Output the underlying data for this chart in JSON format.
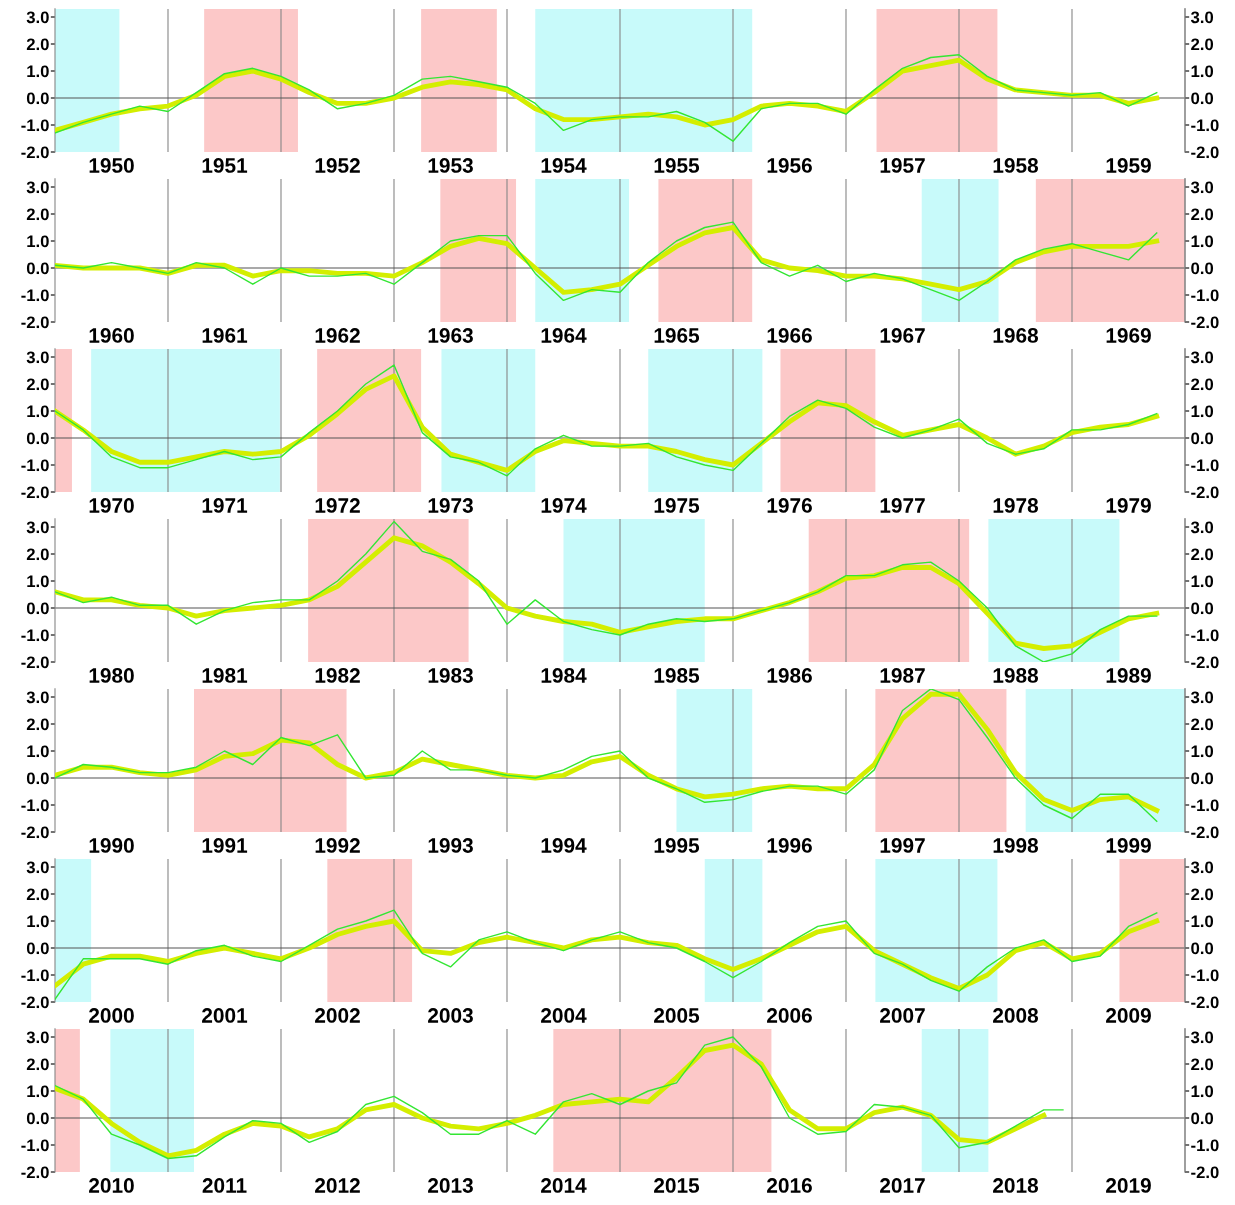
{
  "chart_data": [
    {
      "type": "line",
      "xlim": [
        1950,
        1960
      ],
      "ylim": [
        -2,
        3.3
      ],
      "y2lim": [
        -2,
        3.3
      ],
      "grid": "x",
      "yticks": [
        {
          "value": -2,
          "label": "-2.0"
        },
        {
          "value": -1,
          "label": "-1.0"
        },
        {
          "value": 0,
          "label": "0.0"
        },
        {
          "value": 1,
          "label": "1.0"
        },
        {
          "value": 2,
          "label": "2.0"
        },
        {
          "value": 3,
          "label": "3.0"
        }
      ],
      "y2ticks": [
        {
          "value": -2,
          "label": "-2.0"
        },
        {
          "value": -1,
          "label": "-1.0"
        },
        {
          "value": 0,
          "label": "0.0"
        },
        {
          "value": 1,
          "label": "1.0"
        },
        {
          "value": 2,
          "label": "2.0"
        },
        {
          "value": 3,
          "label": "3.0"
        }
      ],
      "xticks": [
        {
          "value": 1950.5,
          "label": "1950"
        },
        {
          "value": 1951,
          "label": null
        },
        {
          "value": 1951.5,
          "label": "1951"
        },
        {
          "value": 1952,
          "label": null
        },
        {
          "value": 1952.5,
          "label": "1952"
        },
        {
          "value": 1953,
          "label": null
        },
        {
          "value": 1953.5,
          "label": "1953"
        },
        {
          "value": 1954,
          "label": null
        },
        {
          "value": 1954.5,
          "label": "1954"
        },
        {
          "value": 1955,
          "label": null
        },
        {
          "value": 1955.5,
          "label": "1955"
        },
        {
          "value": 1956,
          "label": null
        },
        {
          "value": 1956.5,
          "label": "1956"
        },
        {
          "value": 1957,
          "label": null
        },
        {
          "value": 1957.5,
          "label": "1957"
        },
        {
          "value": 1958,
          "label": null
        },
        {
          "value": 1958.5,
          "label": "1958"
        },
        {
          "value": 1959,
          "label": null
        },
        {
          "value": 1959.5,
          "label": "1959"
        }
      ],
      "ref_lines": [
        {
          "axis": "y",
          "value": 0,
          "color": "#555555"
        }
      ],
      "bands": [
        {
          "axis": "x",
          "from": 1950.0,
          "to": 1950.57,
          "color": "#c8fafa"
        },
        {
          "axis": "x",
          "from": 1951.32,
          "to": 1952.15,
          "color": "#fcc8c8"
        },
        {
          "axis": "x",
          "from": 1953.24,
          "to": 1953.91,
          "color": "#fcc8c8"
        },
        {
          "axis": "x",
          "from": 1954.25,
          "to": 1956.17,
          "color": "#c8fafa"
        },
        {
          "axis": "x",
          "from": 1957.27,
          "to": 1958.34,
          "color": "#fcc8c8"
        }
      ],
      "x": [
        1950,
        1950.25,
        1950.5,
        1950.75,
        1951,
        1951.25,
        1951.5,
        1951.75,
        1952,
        1952.25,
        1952.5,
        1952.75,
        1953,
        1953.25,
        1953.5,
        1953.75,
        1954,
        1954.25,
        1954.5,
        1954.75,
        1955,
        1955.25,
        1955.5,
        1955.75,
        1956,
        1956.25,
        1956.5,
        1956.75,
        1957,
        1957.25,
        1957.5,
        1957.75,
        1958,
        1958.25,
        1958.5,
        1958.75,
        1959,
        1959.25,
        1959.5,
        1959.75
      ],
      "series": [
        {
          "color": "#d4ee00",
          "values": [
            -1.2,
            -0.9,
            -0.6,
            -0.4,
            -0.3,
            0.1,
            0.8,
            1.0,
            0.7,
            0.2,
            -0.2,
            -0.2,
            0.0,
            0.4,
            0.6,
            0.5,
            0.3,
            -0.4,
            -0.8,
            -0.8,
            -0.7,
            -0.6,
            -0.7,
            -1.0,
            -0.8,
            -0.3,
            -0.2,
            -0.3,
            -0.5,
            0.2,
            1.0,
            1.2,
            1.4,
            0.7,
            0.3,
            0.2,
            0.1,
            0.1,
            -0.2,
            0.0
          ]
        },
        {
          "color": "#33e633",
          "values": [
            -1.3,
            -0.9,
            -0.6,
            -0.3,
            -0.5,
            0.2,
            0.9,
            1.1,
            0.8,
            0.3,
            -0.4,
            -0.2,
            0.1,
            0.7,
            0.8,
            0.6,
            0.4,
            -0.2,
            -1.2,
            -0.8,
            -0.7,
            -0.7,
            -0.5,
            -0.9,
            -1.6,
            -0.4,
            -0.2,
            -0.2,
            -0.6,
            0.3,
            1.1,
            1.5,
            1.6,
            0.8,
            0.3,
            0.2,
            0.1,
            0.2,
            -0.3,
            0.2
          ]
        }
      ]
    },
    {
      "type": "line",
      "xlim": [
        1960,
        1970
      ],
      "ylim": [
        -2,
        3.3
      ],
      "y2lim": [
        -2,
        3.3
      ],
      "grid": "x",
      "yticks": [
        {
          "value": -2,
          "label": "-2.0"
        },
        {
          "value": -1,
          "label": "-1.0"
        },
        {
          "value": 0,
          "label": "0.0"
        },
        {
          "value": 1,
          "label": "1.0"
        },
        {
          "value": 2,
          "label": "2.0"
        },
        {
          "value": 3,
          "label": "3.0"
        }
      ],
      "y2ticks": [
        {
          "value": -2,
          "label": "-2.0"
        },
        {
          "value": -1,
          "label": "-1.0"
        },
        {
          "value": 0,
          "label": "0.0"
        },
        {
          "value": 1,
          "label": "1.0"
        },
        {
          "value": 2,
          "label": "2.0"
        },
        {
          "value": 3,
          "label": "3.0"
        }
      ],
      "xticks": [
        {
          "value": 1960.5,
          "label": "1960"
        },
        {
          "value": 1961,
          "label": null
        },
        {
          "value": 1961.5,
          "label": "1961"
        },
        {
          "value": 1962,
          "label": null
        },
        {
          "value": 1962.5,
          "label": "1962"
        },
        {
          "value": 1963,
          "label": null
        },
        {
          "value": 1963.5,
          "label": "1963"
        },
        {
          "value": 1964,
          "label": null
        },
        {
          "value": 1964.5,
          "label": "1964"
        },
        {
          "value": 1965,
          "label": null
        },
        {
          "value": 1965.5,
          "label": "1965"
        },
        {
          "value": 1966,
          "label": null
        },
        {
          "value": 1966.5,
          "label": "1966"
        },
        {
          "value": 1967,
          "label": null
        },
        {
          "value": 1967.5,
          "label": "1967"
        },
        {
          "value": 1968,
          "label": null
        },
        {
          "value": 1968.5,
          "label": "1968"
        },
        {
          "value": 1969,
          "label": null
        },
        {
          "value": 1969.5,
          "label": "1969"
        }
      ],
      "ref_lines": [
        {
          "axis": "y",
          "value": 0,
          "color": "#555555"
        }
      ],
      "bands": [
        {
          "axis": "x",
          "from": 1963.41,
          "to": 1964.08,
          "color": "#fcc8c8"
        },
        {
          "axis": "x",
          "from": 1964.25,
          "to": 1965.08,
          "color": "#c8fafa"
        },
        {
          "axis": "x",
          "from": 1965.34,
          "to": 1966.17,
          "color": "#fcc8c8"
        },
        {
          "axis": "x",
          "from": 1967.67,
          "to": 1968.35,
          "color": "#c8fafa"
        },
        {
          "axis": "x",
          "from": 1968.68,
          "to": 1970.0,
          "color": "#fcc8c8"
        }
      ],
      "x": [
        1960,
        1960.25,
        1960.5,
        1960.75,
        1961,
        1961.25,
        1961.5,
        1961.75,
        1962,
        1962.25,
        1962.5,
        1962.75,
        1963,
        1963.25,
        1963.5,
        1963.75,
        1964,
        1964.25,
        1964.5,
        1964.75,
        1965,
        1965.25,
        1965.5,
        1965.75,
        1966,
        1966.25,
        1966.5,
        1966.75,
        1967,
        1967.25,
        1967.5,
        1967.75,
        1968,
        1968.25,
        1968.5,
        1968.75,
        1969,
        1969.25,
        1969.5,
        1969.75
      ],
      "series": [
        {
          "color": "#d4ee00",
          "values": [
            0.1,
            0.0,
            0.0,
            0.0,
            -0.2,
            0.1,
            0.1,
            -0.3,
            -0.1,
            -0.1,
            -0.2,
            -0.2,
            -0.3,
            0.2,
            0.8,
            1.1,
            0.9,
            0.0,
            -0.9,
            -0.8,
            -0.6,
            0.1,
            0.8,
            1.3,
            1.5,
            0.3,
            0.0,
            -0.1,
            -0.3,
            -0.3,
            -0.4,
            -0.6,
            -0.8,
            -0.5,
            0.2,
            0.6,
            0.8,
            0.8,
            0.8,
            1.0
          ]
        },
        {
          "color": "#33e633",
          "values": [
            0.1,
            0.0,
            0.2,
            0.0,
            -0.2,
            0.2,
            0.0,
            -0.6,
            0.0,
            -0.3,
            -0.3,
            -0.2,
            -0.6,
            0.2,
            1.0,
            1.2,
            1.2,
            -0.2,
            -1.2,
            -0.8,
            -0.9,
            0.2,
            1.0,
            1.5,
            1.7,
            0.2,
            -0.3,
            0.1,
            -0.5,
            -0.2,
            -0.4,
            -0.8,
            -1.2,
            -0.5,
            0.3,
            0.7,
            0.9,
            0.6,
            0.3,
            1.3
          ]
        }
      ]
    },
    {
      "type": "line",
      "xlim": [
        1970,
        1980
      ],
      "ylim": [
        -2,
        3.3
      ],
      "y2lim": [
        -2,
        3.3
      ],
      "grid": "x",
      "yticks": [
        {
          "value": -2,
          "label": "-2.0"
        },
        {
          "value": -1,
          "label": "-1.0"
        },
        {
          "value": 0,
          "label": "0.0"
        },
        {
          "value": 1,
          "label": "1.0"
        },
        {
          "value": 2,
          "label": "2.0"
        },
        {
          "value": 3,
          "label": "3.0"
        }
      ],
      "y2ticks": [
        {
          "value": -2,
          "label": "-2.0"
        },
        {
          "value": -1,
          "label": "-1.0"
        },
        {
          "value": 0,
          "label": "0.0"
        },
        {
          "value": 1,
          "label": "1.0"
        },
        {
          "value": 2,
          "label": "2.0"
        },
        {
          "value": 3,
          "label": "3.0"
        }
      ],
      "xticks": [
        {
          "value": 1970.5,
          "label": "1970"
        },
        {
          "value": 1971,
          "label": null
        },
        {
          "value": 1971.5,
          "label": "1971"
        },
        {
          "value": 1972,
          "label": null
        },
        {
          "value": 1972.5,
          "label": "1972"
        },
        {
          "value": 1973,
          "label": null
        },
        {
          "value": 1973.5,
          "label": "1973"
        },
        {
          "value": 1974,
          "label": null
        },
        {
          "value": 1974.5,
          "label": "1974"
        },
        {
          "value": 1975,
          "label": null
        },
        {
          "value": 1975.5,
          "label": "1975"
        },
        {
          "value": 1976,
          "label": null
        },
        {
          "value": 1976.5,
          "label": "1976"
        },
        {
          "value": 1977,
          "label": null
        },
        {
          "value": 1977.5,
          "label": "1977"
        },
        {
          "value": 1978,
          "label": null
        },
        {
          "value": 1978.5,
          "label": "1978"
        },
        {
          "value": 1979,
          "label": null
        },
        {
          "value": 1979.5,
          "label": "1979"
        }
      ],
      "ref_lines": [
        {
          "axis": "y",
          "value": 0,
          "color": "#555555"
        }
      ],
      "bands": [
        {
          "axis": "x",
          "from": 1970.0,
          "to": 1970.15,
          "color": "#fcc8c8"
        },
        {
          "axis": "x",
          "from": 1970.32,
          "to": 1971.99,
          "color": "#c8fafa"
        },
        {
          "axis": "x",
          "from": 1972.32,
          "to": 1973.24,
          "color": "#fcc8c8"
        },
        {
          "axis": "x",
          "from": 1973.42,
          "to": 1974.25,
          "color": "#c8fafa"
        },
        {
          "axis": "x",
          "from": 1975.25,
          "to": 1976.26,
          "color": "#c8fafa"
        },
        {
          "axis": "x",
          "from": 1976.42,
          "to": 1977.26,
          "color": "#fcc8c8"
        }
      ],
      "x": [
        1970,
        1970.25,
        1970.5,
        1970.75,
        1971,
        1971.25,
        1971.5,
        1971.75,
        1972,
        1972.25,
        1972.5,
        1972.75,
        1973,
        1973.25,
        1973.5,
        1973.75,
        1974,
        1974.25,
        1974.5,
        1974.75,
        1975,
        1975.25,
        1975.5,
        1975.75,
        1976,
        1976.25,
        1976.5,
        1976.75,
        1977,
        1977.25,
        1977.5,
        1977.75,
        1978,
        1978.25,
        1978.5,
        1978.75,
        1979,
        1979.25,
        1979.5,
        1979.75
      ],
      "series": [
        {
          "color": "#d4ee00",
          "values": [
            1.0,
            0.3,
            -0.5,
            -0.9,
            -0.9,
            -0.7,
            -0.5,
            -0.6,
            -0.5,
            0.1,
            0.9,
            1.8,
            2.3,
            0.4,
            -0.6,
            -0.9,
            -1.2,
            -0.5,
            -0.1,
            -0.2,
            -0.3,
            -0.3,
            -0.5,
            -0.8,
            -1.0,
            -0.2,
            0.6,
            1.3,
            1.2,
            0.6,
            0.1,
            0.3,
            0.5,
            0.0,
            -0.6,
            -0.3,
            0.2,
            0.4,
            0.5,
            0.8
          ]
        },
        {
          "color": "#33e633",
          "values": [
            1.0,
            0.3,
            -0.7,
            -1.1,
            -1.1,
            -0.8,
            -0.5,
            -0.8,
            -0.7,
            0.2,
            1.0,
            2.0,
            2.7,
            0.2,
            -0.7,
            -0.9,
            -1.4,
            -0.4,
            0.1,
            -0.3,
            -0.3,
            -0.2,
            -0.7,
            -1.0,
            -1.2,
            -0.2,
            0.8,
            1.4,
            1.1,
            0.4,
            0.0,
            0.3,
            0.7,
            -0.2,
            -0.6,
            -0.4,
            0.3,
            0.3,
            0.5,
            0.9
          ]
        }
      ]
    },
    {
      "type": "line",
      "xlim": [
        1980,
        1990
      ],
      "ylim": [
        -2,
        3.3
      ],
      "y2lim": [
        -2,
        3.3
      ],
      "grid": "x",
      "yticks": [
        {
          "value": -2,
          "label": "-2.0"
        },
        {
          "value": -1,
          "label": "-1.0"
        },
        {
          "value": 0,
          "label": "0.0"
        },
        {
          "value": 1,
          "label": "1.0"
        },
        {
          "value": 2,
          "label": "2.0"
        },
        {
          "value": 3,
          "label": "3.0"
        }
      ],
      "y2ticks": [
        {
          "value": -2,
          "label": "-2.0"
        },
        {
          "value": -1,
          "label": "-1.0"
        },
        {
          "value": 0,
          "label": "0.0"
        },
        {
          "value": 1,
          "label": "1.0"
        },
        {
          "value": 2,
          "label": "2.0"
        },
        {
          "value": 3,
          "label": "3.0"
        }
      ],
      "xticks": [
        {
          "value": 1980.5,
          "label": "1980"
        },
        {
          "value": 1981,
          "label": null
        },
        {
          "value": 1981.5,
          "label": "1981"
        },
        {
          "value": 1982,
          "label": null
        },
        {
          "value": 1982.5,
          "label": "1982"
        },
        {
          "value": 1983,
          "label": null
        },
        {
          "value": 1983.5,
          "label": "1983"
        },
        {
          "value": 1984,
          "label": null
        },
        {
          "value": 1984.5,
          "label": "1984"
        },
        {
          "value": 1985,
          "label": null
        },
        {
          "value": 1985.5,
          "label": "1985"
        },
        {
          "value": 1986,
          "label": null
        },
        {
          "value": 1986.5,
          "label": "1986"
        },
        {
          "value": 1987,
          "label": null
        },
        {
          "value": 1987.5,
          "label": "1987"
        },
        {
          "value": 1988,
          "label": null
        },
        {
          "value": 1988.5,
          "label": "1988"
        },
        {
          "value": 1989,
          "label": null
        },
        {
          "value": 1989.5,
          "label": "1989"
        }
      ],
      "ref_lines": [
        {
          "axis": "y",
          "value": 0,
          "color": "#555555"
        }
      ],
      "bands": [
        {
          "axis": "x",
          "from": 1982.24,
          "to": 1983.66,
          "color": "#fcc8c8"
        },
        {
          "axis": "x",
          "from": 1984.5,
          "to": 1985.75,
          "color": "#c8fafa"
        },
        {
          "axis": "x",
          "from": 1986.67,
          "to": 1988.09,
          "color": "#fcc8c8"
        },
        {
          "axis": "x",
          "from": 1988.26,
          "to": 1989.42,
          "color": "#c8fafa"
        }
      ],
      "x": [
        1980,
        1980.25,
        1980.5,
        1980.75,
        1981,
        1981.25,
        1981.5,
        1981.75,
        1982,
        1982.25,
        1982.5,
        1982.75,
        1983,
        1983.25,
        1983.5,
        1983.75,
        1984,
        1984.25,
        1984.5,
        1984.75,
        1985,
        1985.25,
        1985.5,
        1985.75,
        1986,
        1986.25,
        1986.5,
        1986.75,
        1987,
        1987.25,
        1987.5,
        1987.75,
        1988,
        1988.25,
        1988.5,
        1988.75,
        1989,
        1989.25,
        1989.5,
        1989.75
      ],
      "series": [
        {
          "color": "#d4ee00",
          "values": [
            0.6,
            0.3,
            0.3,
            0.1,
            0.0,
            -0.3,
            -0.1,
            0.0,
            0.1,
            0.3,
            0.8,
            1.7,
            2.6,
            2.3,
            1.7,
            0.9,
            0.0,
            -0.3,
            -0.5,
            -0.6,
            -0.9,
            -0.7,
            -0.5,
            -0.4,
            -0.4,
            -0.1,
            0.2,
            0.6,
            1.1,
            1.2,
            1.5,
            1.5,
            0.9,
            -0.2,
            -1.3,
            -1.5,
            -1.4,
            -0.9,
            -0.4,
            -0.2
          ]
        },
        {
          "color": "#33e633",
          "values": [
            0.6,
            0.2,
            0.4,
            0.1,
            0.1,
            -0.6,
            -0.1,
            0.2,
            0.3,
            0.3,
            1.0,
            2.0,
            3.2,
            2.1,
            1.8,
            1.0,
            -0.6,
            0.3,
            -0.5,
            -0.8,
            -1.0,
            -0.6,
            -0.4,
            -0.5,
            -0.4,
            -0.1,
            0.2,
            0.6,
            1.2,
            1.2,
            1.6,
            1.7,
            1.0,
            0.0,
            -1.4,
            -2.0,
            -1.7,
            -0.8,
            -0.3,
            -0.3
          ]
        }
      ]
    },
    {
      "type": "line",
      "xlim": [
        1990,
        2000
      ],
      "ylim": [
        -2,
        3.3
      ],
      "y2lim": [
        -2,
        3.3
      ],
      "grid": "x",
      "yticks": [
        {
          "value": -2,
          "label": "-2.0"
        },
        {
          "value": -1,
          "label": "-1.0"
        },
        {
          "value": 0,
          "label": "0.0"
        },
        {
          "value": 1,
          "label": "1.0"
        },
        {
          "value": 2,
          "label": "2.0"
        },
        {
          "value": 3,
          "label": "3.0"
        }
      ],
      "y2ticks": [
        {
          "value": -2,
          "label": "-2.0"
        },
        {
          "value": -1,
          "label": "-1.0"
        },
        {
          "value": 0,
          "label": "0.0"
        },
        {
          "value": 1,
          "label": "1.0"
        },
        {
          "value": 2,
          "label": "2.0"
        },
        {
          "value": 3,
          "label": "3.0"
        }
      ],
      "xticks": [
        {
          "value": 1990.5,
          "label": "1990"
        },
        {
          "value": 1991,
          "label": null
        },
        {
          "value": 1991.5,
          "label": "1991"
        },
        {
          "value": 1992,
          "label": null
        },
        {
          "value": 1992.5,
          "label": "1992"
        },
        {
          "value": 1993,
          "label": null
        },
        {
          "value": 1993.5,
          "label": "1993"
        },
        {
          "value": 1994,
          "label": null
        },
        {
          "value": 1994.5,
          "label": "1994"
        },
        {
          "value": 1995,
          "label": null
        },
        {
          "value": 1995.5,
          "label": "1995"
        },
        {
          "value": 1996,
          "label": null
        },
        {
          "value": 1996.5,
          "label": "1996"
        },
        {
          "value": 1997,
          "label": null
        },
        {
          "value": 1997.5,
          "label": "1997"
        },
        {
          "value": 1998,
          "label": null
        },
        {
          "value": 1998.5,
          "label": "1998"
        },
        {
          "value": 1999,
          "label": null
        },
        {
          "value": 1999.5,
          "label": "1999"
        }
      ],
      "ref_lines": [
        {
          "axis": "y",
          "value": 0,
          "color": "#555555"
        }
      ],
      "bands": [
        {
          "axis": "x",
          "from": 1991.23,
          "to": 1992.58,
          "color": "#fcc8c8"
        },
        {
          "axis": "x",
          "from": 1995.5,
          "to": 1996.17,
          "color": "#c8fafa"
        },
        {
          "axis": "x",
          "from": 1997.26,
          "to": 1998.42,
          "color": "#fcc8c8"
        },
        {
          "axis": "x",
          "from": 1998.59,
          "to": 2000.0,
          "color": "#c8fafa"
        }
      ],
      "x": [
        1990,
        1990.25,
        1990.5,
        1990.75,
        1991,
        1991.25,
        1991.5,
        1991.75,
        1992,
        1992.25,
        1992.5,
        1992.75,
        1993,
        1993.25,
        1993.5,
        1993.75,
        1994,
        1994.25,
        1994.5,
        1994.75,
        1995,
        1995.25,
        1995.5,
        1995.75,
        1996,
        1996.25,
        1996.5,
        1996.75,
        1997,
        1997.25,
        1997.5,
        1997.75,
        1998,
        1998.25,
        1998.5,
        1998.75,
        1999,
        1999.25,
        1999.5,
        1999.75
      ],
      "series": [
        {
          "color": "#d4ee00",
          "values": [
            0.1,
            0.4,
            0.4,
            0.2,
            0.1,
            0.3,
            0.8,
            0.9,
            1.4,
            1.3,
            0.5,
            0.0,
            0.2,
            0.7,
            0.5,
            0.3,
            0.1,
            0.0,
            0.1,
            0.6,
            0.8,
            0.1,
            -0.4,
            -0.7,
            -0.6,
            -0.4,
            -0.3,
            -0.4,
            -0.4,
            0.5,
            2.2,
            3.1,
            3.1,
            1.8,
            0.2,
            -0.8,
            -1.2,
            -0.8,
            -0.7,
            -1.2
          ]
        },
        {
          "color": "#33e633",
          "values": [
            0.0,
            0.5,
            0.4,
            0.2,
            0.2,
            0.4,
            1.0,
            0.5,
            1.5,
            1.2,
            1.6,
            0.0,
            0.1,
            1.0,
            0.3,
            0.3,
            0.1,
            0.0,
            0.3,
            0.8,
            1.0,
            0.0,
            -0.4,
            -0.9,
            -0.8,
            -0.5,
            -0.3,
            -0.3,
            -0.6,
            0.3,
            2.5,
            3.3,
            2.9,
            1.5,
            0.0,
            -1.0,
            -1.5,
            -0.6,
            -0.6,
            -1.6
          ]
        }
      ]
    },
    {
      "type": "line",
      "xlim": [
        2000,
        2010
      ],
      "ylim": [
        -2,
        3.3
      ],
      "y2lim": [
        -2,
        3.3
      ],
      "grid": "x",
      "yticks": [
        {
          "value": -2,
          "label": "-2.0"
        },
        {
          "value": -1,
          "label": "-1.0"
        },
        {
          "value": 0,
          "label": "0.0"
        },
        {
          "value": 1,
          "label": "1.0"
        },
        {
          "value": 2,
          "label": "2.0"
        },
        {
          "value": 3,
          "label": "3.0"
        }
      ],
      "y2ticks": [
        {
          "value": -2,
          "label": "-2.0"
        },
        {
          "value": -1,
          "label": "-1.0"
        },
        {
          "value": 0,
          "label": "0.0"
        },
        {
          "value": 1,
          "label": "1.0"
        },
        {
          "value": 2,
          "label": "2.0"
        },
        {
          "value": 3,
          "label": "3.0"
        }
      ],
      "xticks": [
        {
          "value": 2000.5,
          "label": "2000"
        },
        {
          "value": 2001,
          "label": null
        },
        {
          "value": 2001.5,
          "label": "2001"
        },
        {
          "value": 2002,
          "label": null
        },
        {
          "value": 2002.5,
          "label": "2002"
        },
        {
          "value": 2003,
          "label": null
        },
        {
          "value": 2003.5,
          "label": "2003"
        },
        {
          "value": 2004,
          "label": null
        },
        {
          "value": 2004.5,
          "label": "2004"
        },
        {
          "value": 2005,
          "label": null
        },
        {
          "value": 2005.5,
          "label": "2005"
        },
        {
          "value": 2006,
          "label": null
        },
        {
          "value": 2006.5,
          "label": "2006"
        },
        {
          "value": 2007,
          "label": null
        },
        {
          "value": 2007.5,
          "label": "2007"
        },
        {
          "value": 2008,
          "label": null
        },
        {
          "value": 2008.5,
          "label": "2008"
        },
        {
          "value": 2009,
          "label": null
        },
        {
          "value": 2009.5,
          "label": "2009"
        }
      ],
      "ref_lines": [
        {
          "axis": "y",
          "value": 0,
          "color": "#555555"
        }
      ],
      "bands": [
        {
          "axis": "x",
          "from": 2000.0,
          "to": 2000.32,
          "color": "#c8fafa"
        },
        {
          "axis": "x",
          "from": 2002.41,
          "to": 2003.16,
          "color": "#fcc8c8"
        },
        {
          "axis": "x",
          "from": 2005.75,
          "to": 2006.26,
          "color": "#c8fafa"
        },
        {
          "axis": "x",
          "from": 2007.26,
          "to": 2008.34,
          "color": "#c8fafa"
        },
        {
          "axis": "x",
          "from": 2009.42,
          "to": 2010.0,
          "color": "#fcc8c8"
        }
      ],
      "x": [
        2000,
        2000.25,
        2000.5,
        2000.75,
        2001,
        2001.25,
        2001.5,
        2001.75,
        2002,
        2002.25,
        2002.5,
        2002.75,
        2003,
        2003.25,
        2003.5,
        2003.75,
        2004,
        2004.25,
        2004.5,
        2004.75,
        2005,
        2005.25,
        2005.5,
        2005.75,
        2006,
        2006.25,
        2006.5,
        2006.75,
        2007,
        2007.25,
        2007.5,
        2007.75,
        2008,
        2008.25,
        2008.5,
        2008.75,
        2009,
        2009.25,
        2009.5,
        2009.75
      ],
      "series": [
        {
          "color": "#d4ee00",
          "values": [
            -1.4,
            -0.6,
            -0.3,
            -0.3,
            -0.5,
            -0.2,
            0.0,
            -0.2,
            -0.4,
            0.0,
            0.5,
            0.8,
            1.0,
            -0.1,
            -0.2,
            0.2,
            0.4,
            0.2,
            0.0,
            0.3,
            0.4,
            0.2,
            0.1,
            -0.4,
            -0.8,
            -0.4,
            0.1,
            0.6,
            0.8,
            -0.1,
            -0.6,
            -1.1,
            -1.5,
            -1.0,
            -0.1,
            0.2,
            -0.4,
            -0.2,
            0.6,
            1.0
          ]
        },
        {
          "color": "#33e633",
          "values": [
            -1.9,
            -0.4,
            -0.4,
            -0.4,
            -0.6,
            -0.1,
            0.1,
            -0.3,
            -0.5,
            0.1,
            0.7,
            1.0,
            1.4,
            -0.2,
            -0.7,
            0.3,
            0.6,
            0.2,
            -0.1,
            0.3,
            0.6,
            0.2,
            0.0,
            -0.5,
            -1.1,
            -0.5,
            0.2,
            0.8,
            1.0,
            -0.2,
            -0.6,
            -1.2,
            -1.6,
            -0.7,
            0.0,
            0.3,
            -0.5,
            -0.3,
            0.8,
            1.3
          ]
        }
      ]
    },
    {
      "type": "line",
      "xlim": [
        2010,
        2020
      ],
      "ylim": [
        -2,
        3.3
      ],
      "y2lim": [
        -2,
        3.3
      ],
      "grid": "x",
      "yticks": [
        {
          "value": -2,
          "label": "-2.0"
        },
        {
          "value": -1,
          "label": "-1.0"
        },
        {
          "value": 0,
          "label": "0.0"
        },
        {
          "value": 1,
          "label": "1.0"
        },
        {
          "value": 2,
          "label": "2.0"
        },
        {
          "value": 3,
          "label": "3.0"
        }
      ],
      "y2ticks": [
        {
          "value": -2,
          "label": "-2.0"
        },
        {
          "value": -1,
          "label": "-1.0"
        },
        {
          "value": 0,
          "label": "0.0"
        },
        {
          "value": 1,
          "label": "1.0"
        },
        {
          "value": 2,
          "label": "2.0"
        },
        {
          "value": 3,
          "label": "3.0"
        }
      ],
      "xticks": [
        {
          "value": 2010.5,
          "label": "2010"
        },
        {
          "value": 2011,
          "label": null
        },
        {
          "value": 2011.5,
          "label": "2011"
        },
        {
          "value": 2012,
          "label": null
        },
        {
          "value": 2012.5,
          "label": "2012"
        },
        {
          "value": 2013,
          "label": null
        },
        {
          "value": 2013.5,
          "label": "2013"
        },
        {
          "value": 2014,
          "label": null
        },
        {
          "value": 2014.5,
          "label": "2014"
        },
        {
          "value": 2015,
          "label": null
        },
        {
          "value": 2015.5,
          "label": "2015"
        },
        {
          "value": 2016,
          "label": null
        },
        {
          "value": 2016.5,
          "label": "2016"
        },
        {
          "value": 2017,
          "label": null
        },
        {
          "value": 2017.5,
          "label": "2017"
        },
        {
          "value": 2018,
          "label": null
        },
        {
          "value": 2018.5,
          "label": "2018"
        },
        {
          "value": 2019,
          "label": null
        },
        {
          "value": 2019.5,
          "label": "2019"
        }
      ],
      "ref_lines": [
        {
          "axis": "y",
          "value": 0,
          "color": "#555555"
        }
      ],
      "bands": [
        {
          "axis": "x",
          "from": 2010.0,
          "to": 2010.22,
          "color": "#fcc8c8"
        },
        {
          "axis": "x",
          "from": 2010.49,
          "to": 2011.23,
          "color": "#c8fafa"
        },
        {
          "axis": "x",
          "from": 2014.41,
          "to": 2016.34,
          "color": "#fcc8c8"
        },
        {
          "axis": "x",
          "from": 2017.67,
          "to": 2018.26,
          "color": "#c8fafa"
        }
      ],
      "x": [
        2010,
        2010.25,
        2010.5,
        2010.75,
        2011,
        2011.25,
        2011.5,
        2011.75,
        2012,
        2012.25,
        2012.5,
        2012.75,
        2013,
        2013.25,
        2013.5,
        2013.75,
        2014,
        2014.25,
        2014.5,
        2014.75,
        2015,
        2015.25,
        2015.5,
        2015.75,
        2016,
        2016.25,
        2016.5,
        2016.75,
        2017,
        2017.25,
        2017.5,
        2017.75,
        2018,
        2018.25,
        2018.5,
        2018.75,
        2018.92
      ],
      "series": [
        {
          "color": "#d4ee00",
          "values": [
            1.1,
            0.7,
            -0.2,
            -0.9,
            -1.4,
            -1.2,
            -0.6,
            -0.2,
            -0.3,
            -0.7,
            -0.4,
            0.3,
            0.5,
            0.0,
            -0.3,
            -0.4,
            -0.2,
            0.1,
            0.5,
            0.6,
            0.7,
            0.6,
            1.5,
            2.5,
            2.7,
            2.0,
            0.3,
            -0.4,
            -0.4,
            0.2,
            0.4,
            0.1,
            -0.8,
            -0.9,
            -0.4,
            0.1,
            null
          ]
        },
        {
          "color": "#33e633",
          "values": [
            1.2,
            0.7,
            -0.6,
            -1.0,
            -1.5,
            -1.4,
            -0.7,
            -0.1,
            -0.2,
            -0.9,
            -0.5,
            0.5,
            0.8,
            0.2,
            -0.6,
            -0.6,
            -0.1,
            -0.6,
            0.6,
            0.9,
            0.5,
            1.0,
            1.3,
            2.7,
            3.0,
            1.9,
            0.0,
            -0.6,
            -0.5,
            0.5,
            0.4,
            0.1,
            -1.1,
            -0.9,
            -0.3,
            0.3,
            0.3
          ]
        }
      ]
    }
  ]
}
